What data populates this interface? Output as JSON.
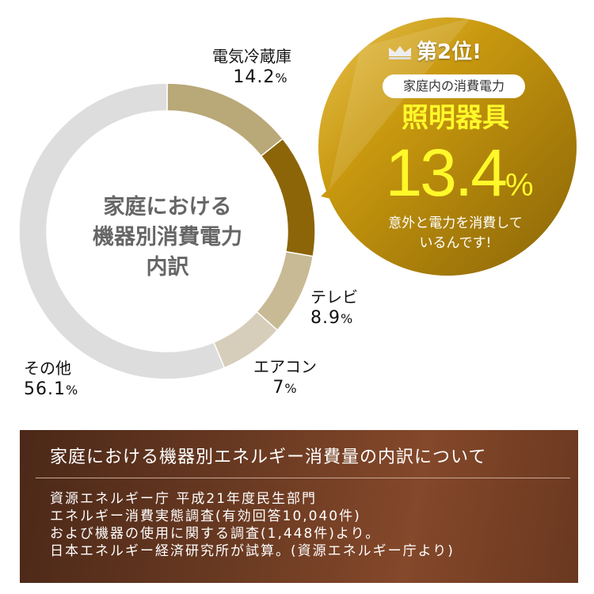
{
  "chart_data": {
    "type": "pie",
    "style": "donut",
    "title": "家庭における機器別消費電力内訳",
    "start": "top",
    "direction": "clockwise",
    "slices": [
      {
        "label": "電気冷蔵庫",
        "value": 14.2,
        "display": "14.2",
        "color": "#b9a878"
      },
      {
        "label": "照明器具",
        "value": 13.4,
        "display": "",
        "color": "#8c6508"
      },
      {
        "label": "テレビ",
        "value": 8.9,
        "display": "8.9",
        "color": "#c8ba95"
      },
      {
        "label": "エアコン",
        "value": 7,
        "display": "7",
        "color": "#d6ceba"
      },
      {
        "label": "その他",
        "value": 56.1,
        "display": "56.1",
        "color": "#dddddd"
      }
    ],
    "unit": "%"
  },
  "center_title": [
    "家庭における",
    "機器別消費電力",
    "内訳"
  ],
  "callout": {
    "rank": "第2位!",
    "pill": "家庭内の消費電力",
    "name": "照明器具",
    "value": "13.4",
    "unit": "%",
    "note": [
      "意外と電力を消費して",
      "いるんです!"
    ],
    "icon": "crown-icon",
    "color": "#b58a10"
  },
  "info_box": {
    "title": "家庭における機器別エネルギー消費量の内訳について",
    "lines": [
      "資源エネルギー庁 平成21年度民生部門",
      "エネルギー消費実態調査(有効回答10,040件)",
      "および機器の使用に関する調査(1,448件)より。",
      "日本エネルギー経済研究所が試算。(資源エネルギー庁より)"
    ]
  }
}
